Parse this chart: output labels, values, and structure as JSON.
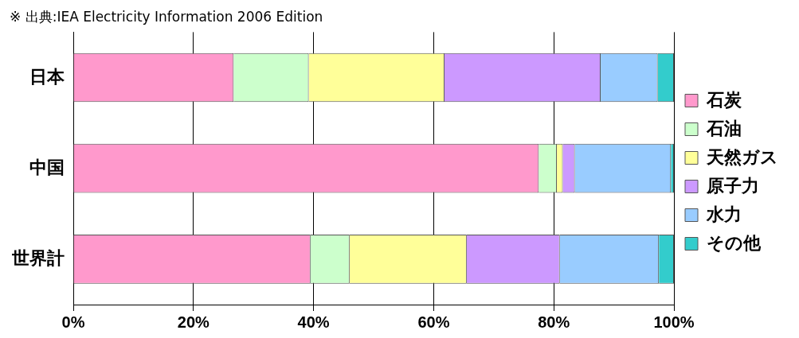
{
  "chart_data": {
    "type": "bar",
    "orientation": "horizontal",
    "stacked": true,
    "title": "※ 出典:IEA Electricity Information 2006 Edition",
    "categories": [
      "日本",
      "中国",
      "世界計"
    ],
    "series": [
      {
        "name": "石炭",
        "color": "#ff99cc",
        "values": [
          26.7,
          77.5,
          39.5
        ]
      },
      {
        "name": "石油",
        "color": "#ccffcc",
        "values": [
          12.5,
          3,
          6.5
        ]
      },
      {
        "name": "天然ガス",
        "color": "#ffff99",
        "values": [
          22.6,
          1,
          19.5
        ]
      },
      {
        "name": "原子力",
        "color": "#cc99ff",
        "values": [
          26,
          2,
          15.5
        ]
      },
      {
        "name": "水力",
        "color": "#99ccff",
        "values": [
          9.5,
          16,
          16.5
        ]
      },
      {
        "name": "その他",
        "color": "#33cccc",
        "values": [
          2.7,
          0.5,
          2.5
        ]
      }
    ],
    "xlim": [
      0,
      100
    ],
    "xticks": [
      {
        "value": 0,
        "label": "0%"
      },
      {
        "value": 20,
        "label": "20%"
      },
      {
        "value": 40,
        "label": "40%"
      },
      {
        "value": 60,
        "label": "60%"
      },
      {
        "value": 80,
        "label": "80%"
      },
      {
        "value": 100,
        "label": "100%"
      }
    ],
    "grid": "x",
    "legend": "right"
  }
}
